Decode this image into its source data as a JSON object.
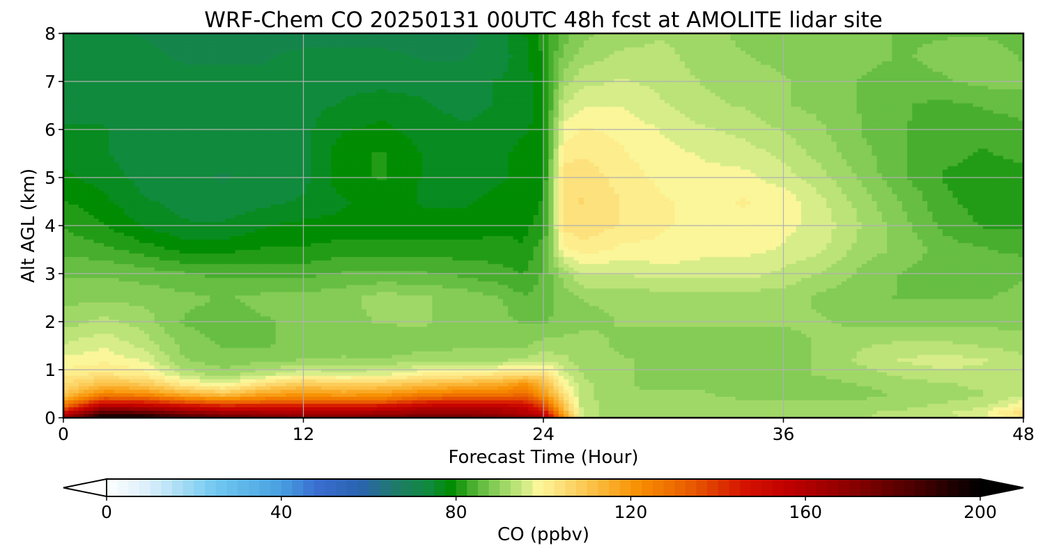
{
  "chart_data": {
    "type": "heatmap",
    "title": "WRF-Chem CO  20250131 00UTC 48h fcst at AMOLITE lidar site",
    "xlabel": "Forecast Time (Hour)",
    "ylabel": "Alt AGL (km)",
    "xlim": [
      0,
      48
    ],
    "ylim": [
      0,
      8
    ],
    "xticks": [
      "0",
      "12",
      "24",
      "36",
      "48"
    ],
    "yticks": [
      "0",
      "1",
      "2",
      "3",
      "4",
      "5",
      "6",
      "7",
      "8"
    ],
    "grid": true,
    "colorbar": {
      "label": "CO  (ppbv)",
      "range": [
        0,
        200
      ],
      "ticks": [
        "0",
        "40",
        "80",
        "120",
        "160",
        "200"
      ],
      "extend": "both",
      "orientation": "horizontal"
    },
    "x": [
      0,
      2,
      4,
      6,
      8,
      10,
      12,
      14,
      16,
      18,
      20,
      22,
      23,
      24,
      25,
      26,
      28,
      30,
      32,
      34,
      36,
      38,
      40,
      42,
      44,
      46,
      48
    ],
    "y": [
      0,
      0.1,
      0.2,
      0.35,
      0.5,
      0.7,
      0.9,
      1.2,
      1.5,
      2,
      2.5,
      3,
      3.5,
      4,
      4.5,
      5,
      5.5,
      6,
      6.5,
      7,
      7.5,
      8
    ],
    "z": [
      [
        162,
        200,
        198,
        185,
        178,
        175,
        172,
        172,
        174,
        176,
        176,
        172,
        168,
        160,
        120,
        92,
        90,
        90,
        90,
        90,
        90,
        90,
        91,
        92,
        93,
        95,
        102
      ],
      [
        150,
        182,
        180,
        170,
        165,
        162,
        160,
        160,
        163,
        165,
        166,
        162,
        158,
        150,
        115,
        92,
        90,
        90,
        90,
        90,
        90,
        90,
        91,
        92,
        93,
        96,
        103
      ],
      [
        132,
        165,
        162,
        155,
        150,
        150,
        150,
        150,
        152,
        158,
        160,
        158,
        155,
        140,
        110,
        92,
        90,
        90,
        90,
        89,
        89,
        89,
        90,
        91,
        92,
        94,
        100
      ],
      [
        118,
        140,
        138,
        130,
        125,
        128,
        128,
        128,
        130,
        138,
        140,
        140,
        140,
        128,
        106,
        92,
        90,
        89,
        89,
        89,
        89,
        89,
        89,
        90,
        91,
        92,
        96
      ],
      [
        108,
        122,
        120,
        112,
        108,
        115,
        118,
        116,
        118,
        122,
        125,
        125,
        128,
        118,
        102,
        92,
        89,
        89,
        89,
        88,
        88,
        88,
        88,
        89,
        90,
        91,
        93
      ],
      [
        104,
        110,
        108,
        100,
        96,
        103,
        108,
        106,
        107,
        110,
        112,
        115,
        120,
        112,
        98,
        92,
        89,
        88,
        88,
        88,
        88,
        88,
        89,
        90,
        91,
        92,
        92
      ],
      [
        100,
        102,
        100,
        93,
        90,
        93,
        96,
        95,
        96,
        99,
        100,
        102,
        104,
        104,
        95,
        91,
        89,
        88,
        88,
        88,
        88,
        89,
        90,
        92,
        93,
        93,
        92
      ],
      [
        97,
        98,
        96,
        89,
        87,
        88,
        89,
        89,
        89,
        90,
        91,
        91,
        92,
        93,
        92,
        90,
        89,
        88,
        88,
        88,
        88,
        89,
        92,
        94,
        95,
        94,
        92
      ],
      [
        94,
        96,
        93,
        88,
        86,
        86,
        87,
        88,
        87,
        88,
        88,
        88,
        88,
        90,
        90,
        90,
        88,
        88,
        88,
        88,
        88,
        89,
        91,
        92,
        92,
        91,
        90
      ],
      [
        90,
        92,
        90,
        86,
        85,
        86,
        87,
        88,
        89,
        89,
        88,
        87,
        86,
        86,
        87,
        88,
        89,
        89,
        89,
        89,
        89,
        89,
        88,
        88,
        88,
        88,
        88
      ],
      [
        88,
        88,
        88,
        87,
        86,
        87,
        87,
        88,
        90,
        89,
        88,
        86,
        84,
        85,
        87,
        89,
        89,
        90,
        90,
        90,
        90,
        88,
        87,
        86,
        86,
        86,
        87
      ],
      [
        86,
        86,
        85,
        84,
        83,
        83,
        83,
        84,
        84,
        84,
        83,
        82,
        81,
        84,
        90,
        94,
        94,
        95,
        95,
        95,
        93,
        91,
        88,
        86,
        85,
        85,
        86
      ],
      [
        83,
        82,
        80,
        78,
        78,
        79,
        79,
        80,
        80,
        80,
        80,
        80,
        79,
        83,
        98,
        100,
        98,
        98,
        97,
        97,
        96,
        94,
        90,
        88,
        85,
        84,
        83
      ],
      [
        81,
        79,
        76,
        74,
        74,
        76,
        77,
        77,
        77,
        77,
        77,
        78,
        78,
        80,
        102,
        103,
        101,
        99,
        98,
        98,
        97,
        95,
        91,
        87,
        83,
        81,
        81
      ],
      [
        79,
        77,
        74,
        73,
        72,
        73,
        74,
        76,
        77,
        76,
        76,
        77,
        77,
        79,
        103,
        104,
        101,
        99,
        98,
        99,
        98,
        94,
        90,
        86,
        82,
        80,
        80
      ],
      [
        77,
        75,
        73,
        72,
        71,
        72,
        73,
        78,
        79,
        76,
        75,
        76,
        77,
        78,
        103,
        103,
        100,
        98,
        97,
        97,
        95,
        92,
        88,
        84,
        81,
        80,
        80
      ],
      [
        75,
        74,
        72,
        72,
        72,
        72,
        73,
        78,
        79,
        76,
        75,
        76,
        77,
        77,
        100,
        101,
        99,
        97,
        96,
        95,
        93,
        90,
        87,
        84,
        82,
        81,
        82
      ],
      [
        74,
        74,
        72,
        72,
        72,
        72,
        73,
        76,
        77,
        75,
        74,
        75,
        76,
        77,
        97,
        99,
        98,
        96,
        94,
        93,
        91,
        89,
        86,
        84,
        82,
        82,
        83
      ],
      [
        73,
        73,
        72,
        72,
        72,
        72,
        73,
        74,
        75,
        74,
        73,
        74,
        75,
        77,
        94,
        96,
        96,
        94,
        92,
        91,
        89,
        88,
        86,
        84,
        83,
        84,
        85
      ],
      [
        73,
        73,
        72,
        72,
        72,
        72,
        73,
        73,
        73,
        73,
        73,
        74,
        75,
        78,
        90,
        93,
        94,
        93,
        91,
        90,
        89,
        88,
        86,
        85,
        86,
        87,
        87
      ],
      [
        72,
        72,
        72,
        71,
        71,
        71,
        72,
        72,
        72,
        71,
        71,
        73,
        75,
        79,
        87,
        90,
        92,
        92,
        90,
        89,
        88,
        88,
        87,
        86,
        87,
        88,
        86
      ],
      [
        72,
        72,
        71,
        70,
        70,
        70,
        70,
        70,
        70,
        70,
        70,
        73,
        76,
        80,
        85,
        88,
        90,
        91,
        90,
        88,
        88,
        87,
        87,
        86,
        86,
        86,
        85
      ]
    ]
  }
}
